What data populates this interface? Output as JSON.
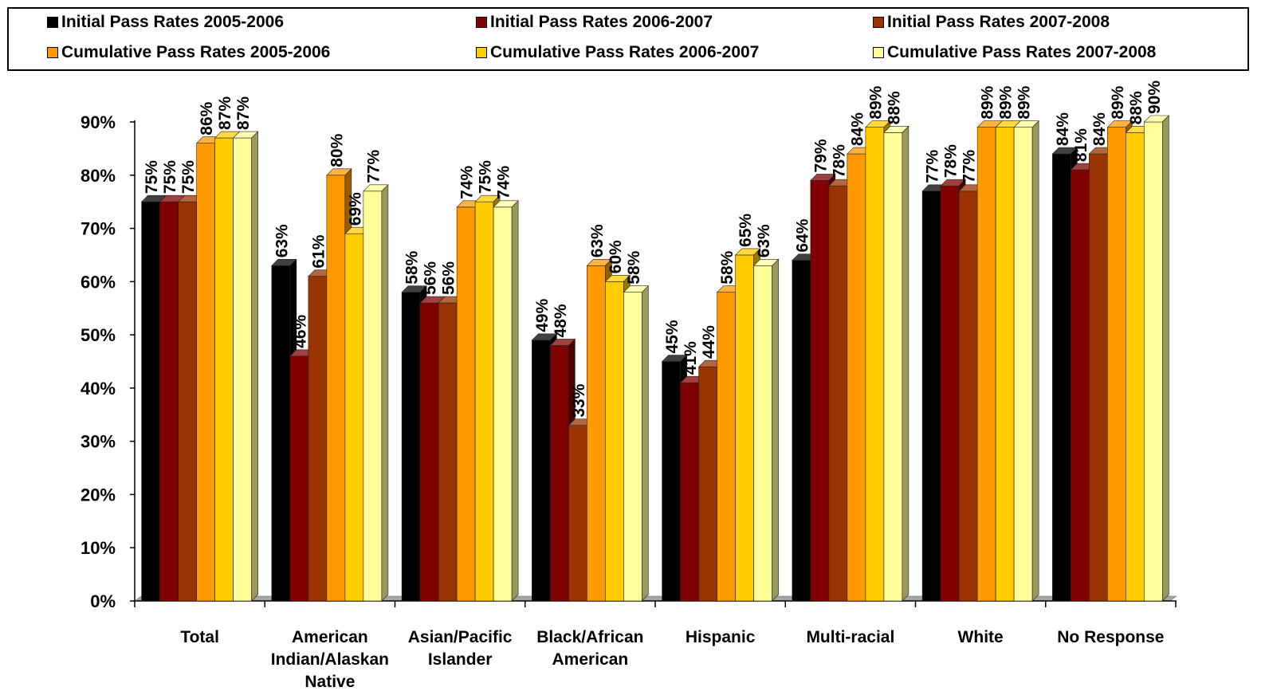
{
  "chart_data": {
    "type": "bar",
    "categories": [
      "Total",
      "American Indian/Alaskan Native",
      "Asian/Pacific Islander",
      "Black/African American",
      "Hispanic",
      "Multi-racial",
      "White",
      "No Response"
    ],
    "category_lines": [
      [
        "Total"
      ],
      [
        "American",
        "Indian/Alaskan",
        "Native"
      ],
      [
        "Asian/Pacific",
        "Islander"
      ],
      [
        "Black/African",
        "American"
      ],
      [
        "Hispanic"
      ],
      [
        "Multi-racial"
      ],
      [
        "White"
      ],
      [
        "No Response"
      ]
    ],
    "series": [
      {
        "name": "Initial Pass Rates 2005-2006",
        "color": "#000000",
        "values": [
          75,
          63,
          58,
          49,
          45,
          64,
          77,
          84
        ]
      },
      {
        "name": "Initial Pass Rates 2006-2007",
        "color": "#800000",
        "values": [
          75,
          46,
          56,
          48,
          41,
          79,
          78,
          81
        ]
      },
      {
        "name": "Initial Pass Rates 2007-2008",
        "color": "#993300",
        "values": [
          75,
          61,
          56,
          33,
          44,
          78,
          77,
          84
        ]
      },
      {
        "name": "Cumulative Pass Rates 2005-2006",
        "color": "#FF9900",
        "values": [
          86,
          80,
          74,
          63,
          58,
          84,
          89,
          89
        ]
      },
      {
        "name": "Cumulative Pass Rates 2006-2007",
        "color": "#FFCC00",
        "values": [
          87,
          69,
          75,
          60,
          65,
          89,
          89,
          88
        ]
      },
      {
        "name": "Cumulative Pass Rates 2007-2008",
        "color": "#FFFF99",
        "values": [
          87,
          77,
          74,
          58,
          63,
          88,
          89,
          90
        ]
      }
    ],
    "yticks": [
      "0%",
      "10%",
      "20%",
      "30%",
      "40%",
      "50%",
      "60%",
      "70%",
      "80%",
      "90%"
    ],
    "ylim": [
      0,
      90
    ],
    "value_suffix": "%",
    "grid": false,
    "legend_position": "top",
    "three_d": true
  }
}
